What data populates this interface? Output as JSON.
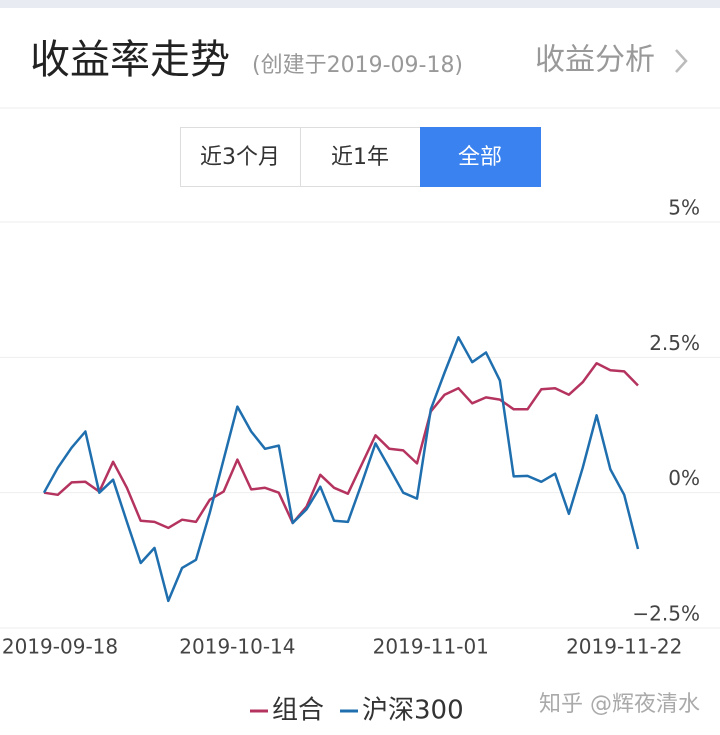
{
  "header": {
    "title": "收益率走势",
    "subtitle": "(创建于2019-09-18)",
    "link": "收益分析"
  },
  "tabs": [
    "近3个月",
    "近1年",
    "全部"
  ],
  "watermark": "知乎 @辉夜清水",
  "chart_data": {
    "type": "line",
    "categories": [
      "2019-09-18",
      null,
      null,
      null,
      null,
      null,
      null,
      null,
      null,
      null,
      null,
      null,
      null,
      null,
      "2019-10-14",
      null,
      null,
      null,
      null,
      null,
      null,
      null,
      null,
      null,
      null,
      null,
      null,
      null,
      "2019-11-01",
      null,
      null,
      null,
      null,
      null,
      null,
      null,
      null,
      null,
      null,
      null,
      null,
      null,
      "2019-11-22",
      null
    ],
    "series": [
      {
        "name": "组合",
        "color": "#b5345f",
        "values": [
          0,
          -0.04,
          0.19,
          0.2,
          0.02,
          0.57,
          0.09,
          -0.52,
          -0.54,
          -0.65,
          -0.5,
          -0.54,
          -0.13,
          0.02,
          0.61,
          0.06,
          0.09,
          0,
          -0.56,
          -0.26,
          0.33,
          0.09,
          -0.02,
          0.52,
          1.06,
          0.81,
          0.78,
          0.54,
          1.5,
          1.81,
          1.93,
          1.65,
          1.76,
          1.72,
          1.54,
          1.54,
          1.91,
          1.93,
          1.81,
          2.04,
          2.39,
          2.26,
          2.24,
          1.98
        ]
      },
      {
        "name": "沪深300",
        "color": "#1f6faf",
        "values": [
          0,
          0.46,
          0.83,
          1.13,
          0,
          0.24,
          -0.54,
          -1.3,
          -1.02,
          -2.0,
          -1.39,
          -1.24,
          -0.37,
          0.61,
          1.59,
          1.13,
          0.81,
          0.87,
          -0.56,
          -0.31,
          0.11,
          -0.52,
          -0.54,
          0.17,
          0.91,
          0.46,
          0,
          -0.11,
          1.54,
          2.22,
          2.87,
          2.41,
          2.59,
          2.07,
          0.3,
          0.31,
          0.2,
          0.35,
          -0.39,
          0.46,
          1.43,
          0.43,
          -0.04,
          -1.04
        ]
      }
    ],
    "ylim": [
      -2.5,
      5
    ],
    "yticks": [
      {
        "value": 5,
        "label": "5%"
      },
      {
        "value": 2.5,
        "label": "2.5%"
      },
      {
        "value": 0,
        "label": "0%"
      },
      {
        "value": -2.5,
        "label": "−2.5%"
      }
    ],
    "grid": true
  }
}
